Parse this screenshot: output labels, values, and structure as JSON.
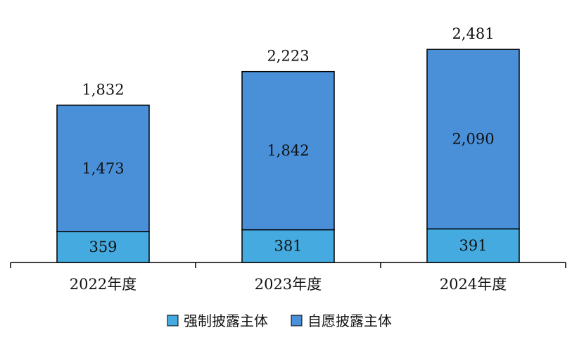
{
  "chart_data": {
    "type": "bar",
    "stacked": true,
    "categories": [
      "2022年度",
      "2023年度",
      "2024年度"
    ],
    "series": [
      {
        "name": "强制披露主体",
        "values": [
          359,
          381,
          391
        ],
        "color": "#44aadf",
        "labels": [
          "359",
          "381",
          "391"
        ]
      },
      {
        "name": "自愿披露主体",
        "values": [
          1473,
          1842,
          2090
        ],
        "color": "#4a90d9",
        "labels": [
          "1,473",
          "1,842",
          "2,090"
        ]
      }
    ],
    "totals": [
      1832,
      2223,
      2481
    ],
    "total_labels": [
      "1,832",
      "2,223",
      "2,481"
    ],
    "ylim": [
      0,
      2712
    ],
    "grid": false,
    "legend_position": "bottom"
  }
}
